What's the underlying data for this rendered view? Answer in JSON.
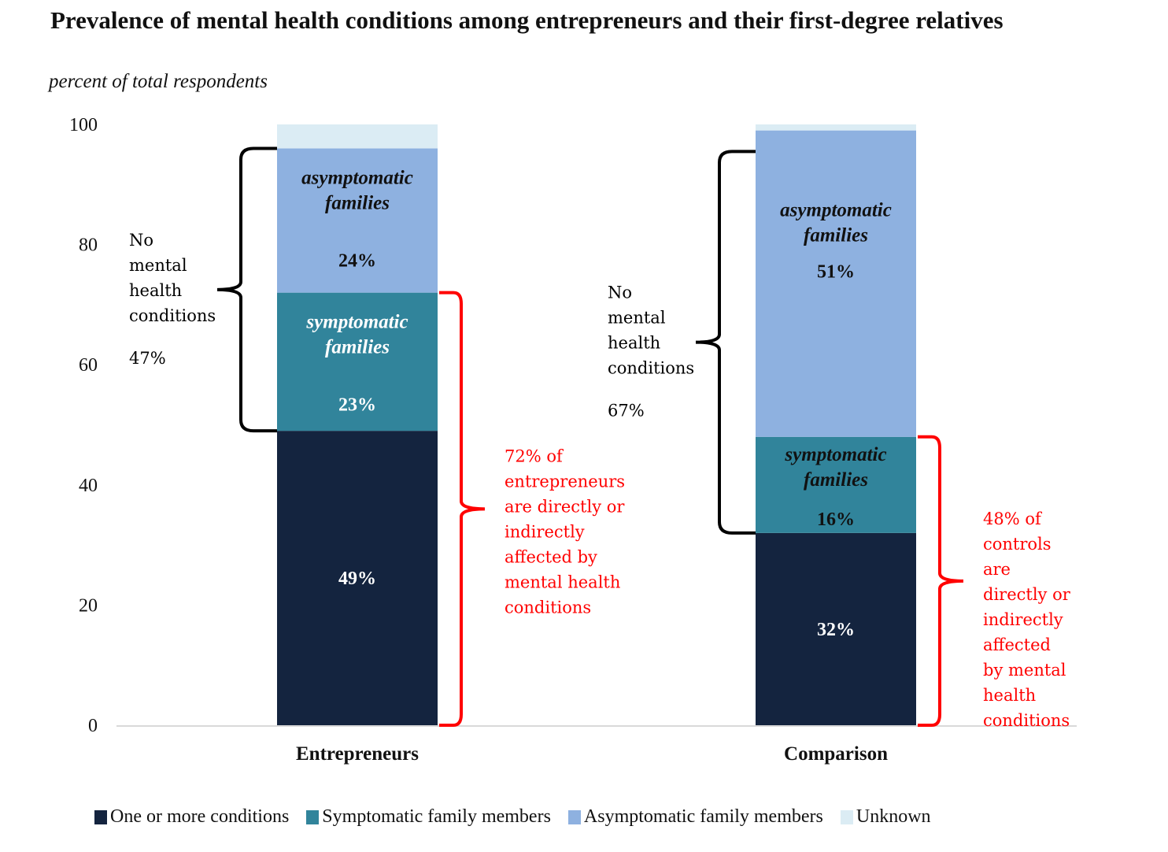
{
  "chart_data": {
    "type": "bar",
    "stacked": true,
    "title": "Prevalence of mental health conditions among entrepreneurs and their first-degree relatives",
    "subtitle": "percent of total respondents",
    "xlabel": "",
    "ylabel": "",
    "ylim": [
      0,
      100
    ],
    "yticks": [
      0,
      20,
      40,
      60,
      80,
      100
    ],
    "grid": false,
    "legend_position": "bottom",
    "categories": [
      "Entrepreneurs",
      "Comparison"
    ],
    "series": [
      {
        "name": "One or more conditions",
        "color": "#14243f",
        "values": [
          49,
          32
        ]
      },
      {
        "name": "Symptomatic family members",
        "color": "#31849b",
        "values": [
          23,
          16
        ]
      },
      {
        "name": "Asymptomatic family members",
        "color": "#8eb1e0",
        "values": [
          24,
          51
        ]
      },
      {
        "name": "Unknown",
        "color": "#dbecf4",
        "values": [
          4,
          1
        ]
      }
    ],
    "segment_labels": [
      {
        "category": "Entrepreneurs",
        "series": "One or more conditions",
        "text": "49%",
        "label_color": "#ffffff"
      },
      {
        "category": "Entrepreneurs",
        "series": "Symptomatic family members",
        "caption": "symptomatic families",
        "text": "23%",
        "label_color": "#ffffff"
      },
      {
        "category": "Entrepreneurs",
        "series": "Asymptomatic family members",
        "caption": "asymptomatic families",
        "text": "24%",
        "label_color": "#111111"
      },
      {
        "category": "Comparison",
        "series": "One or more conditions",
        "text": "32%",
        "label_color": "#ffffff"
      },
      {
        "category": "Comparison",
        "series": "Symptomatic family members",
        "caption": "symptomatic families",
        "text": "16%",
        "label_color": "#111111"
      },
      {
        "category": "Comparison",
        "series": "Asymptomatic family members",
        "caption": "asymptomatic families",
        "text": "51%",
        "label_color": "#111111"
      }
    ],
    "annotations": [
      {
        "category": "Entrepreneurs",
        "side": "left",
        "color": "#000000",
        "range": [
          49,
          96
        ],
        "lines": [
          "No",
          "mental",
          "health",
          "conditions"
        ],
        "value": "47%"
      },
      {
        "category": "Entrepreneurs",
        "side": "right",
        "color": "#ff0000",
        "range": [
          0,
          72
        ],
        "lines": [
          "72% of",
          "entrepreneurs",
          "are directly or",
          "indirectly",
          "affected by",
          "mental health",
          "conditions"
        ]
      },
      {
        "category": "Comparison",
        "side": "left",
        "color": "#000000",
        "range": [
          32,
          95.5
        ],
        "lines": [
          "No",
          "mental",
          "health",
          "conditions"
        ],
        "value": "67%"
      },
      {
        "category": "Comparison",
        "side": "right",
        "color": "#ff0000",
        "range": [
          0,
          48
        ],
        "lines": [
          "48% of",
          "controls",
          "are",
          "directly or",
          "indirectly",
          "affected",
          "by mental",
          "health",
          "conditions"
        ]
      }
    ]
  }
}
